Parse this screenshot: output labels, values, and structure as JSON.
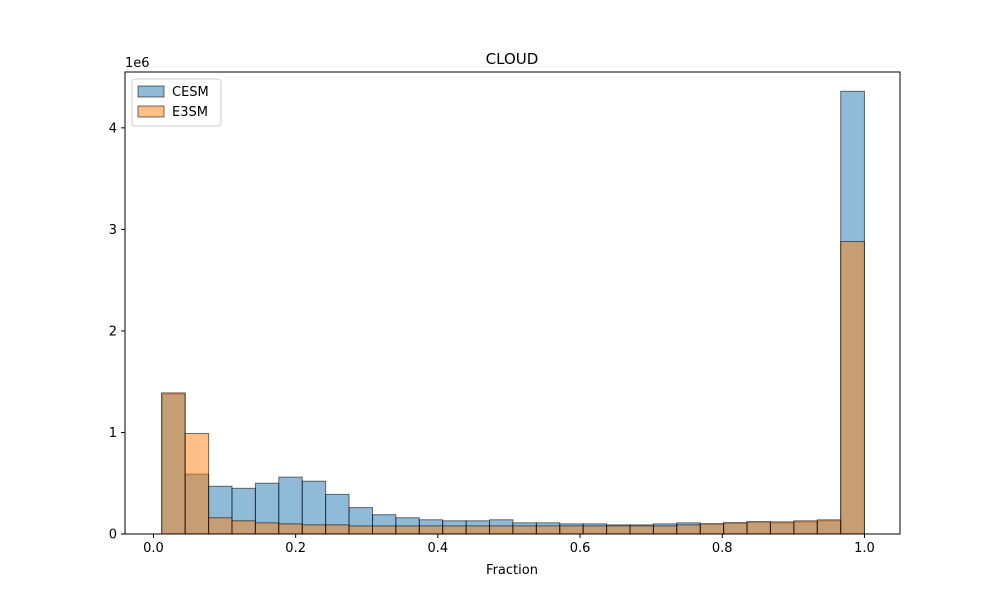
{
  "chart_data": {
    "type": "bar",
    "title": "CLOUD",
    "xlabel": "Fraction",
    "ylabel": "",
    "y_scale_label": "1e6",
    "y_multiplier": 1000000,
    "xlim": [
      -0.04,
      1.05
    ],
    "ylim": [
      0,
      4.55
    ],
    "xticks": [
      0.0,
      0.2,
      0.4,
      0.6,
      0.8,
      1.0
    ],
    "xtick_labels": [
      "0.0",
      "0.2",
      "0.4",
      "0.6",
      "0.8",
      "1.0"
    ],
    "yticks": [
      0,
      1,
      2,
      3,
      4
    ],
    "ytick_labels": [
      "0",
      "1",
      "2",
      "3",
      "4"
    ],
    "bin_edges": [
      0.0117,
      0.0446,
      0.0776,
      0.1105,
      0.1434,
      0.1763,
      0.2093,
      0.2422,
      0.2751,
      0.3081,
      0.341,
      0.3739,
      0.4068,
      0.4398,
      0.4727,
      0.5056,
      0.5386,
      0.5715,
      0.6044,
      0.6373,
      0.6703,
      0.7032,
      0.7361,
      0.7691,
      0.802,
      0.8349,
      0.8678,
      0.9008,
      0.9337,
      0.9666,
      1.0
    ],
    "legend": {
      "position": "upper-left"
    },
    "series": [
      {
        "name": "CESM",
        "color": "#1f77b4",
        "values": [
          1.38,
          0.59,
          0.47,
          0.45,
          0.5,
          0.56,
          0.52,
          0.39,
          0.26,
          0.19,
          0.16,
          0.14,
          0.13,
          0.13,
          0.14,
          0.11,
          0.11,
          0.1,
          0.1,
          0.09,
          0.09,
          0.1,
          0.11,
          0.1,
          0.11,
          0.12,
          0.11,
          0.12,
          0.13,
          4.36
        ]
      },
      {
        "name": "E3SM",
        "color": "#ff7f0e",
        "values": [
          1.39,
          0.99,
          0.16,
          0.13,
          0.11,
          0.1,
          0.09,
          0.09,
          0.08,
          0.08,
          0.08,
          0.08,
          0.08,
          0.08,
          0.08,
          0.08,
          0.08,
          0.08,
          0.08,
          0.08,
          0.08,
          0.08,
          0.09,
          0.1,
          0.11,
          0.12,
          0.12,
          0.13,
          0.14,
          2.88
        ]
      }
    ]
  }
}
